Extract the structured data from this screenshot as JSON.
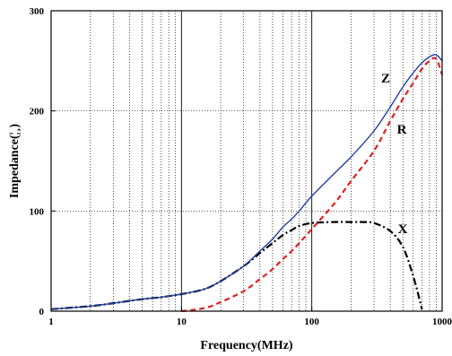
{
  "chart_data": {
    "type": "line",
    "xlabel": "Frequency(MHz)",
    "ylabel": "Impedance(¦¸)",
    "xscale": "log",
    "xlim": [
      1,
      1000
    ],
    "ylim": [
      0,
      300
    ],
    "xticks": [
      "1",
      "10",
      "100",
      "1000"
    ],
    "yticks": [
      "0",
      "100",
      "200",
      "300"
    ],
    "grid": true,
    "series": [
      {
        "name": "Z",
        "color": "#1f3fa0",
        "style": "solid",
        "x": [
          1,
          2,
          3,
          5,
          7,
          10,
          15,
          20,
          30,
          40,
          50,
          60,
          70,
          80,
          100,
          150,
          200,
          300,
          400,
          500,
          600,
          700,
          800,
          900,
          1000
        ],
        "y": [
          2,
          5,
          8,
          12,
          14,
          17,
          22,
          30,
          45,
          60,
          72,
          84,
          92,
          100,
          115,
          138,
          154,
          180,
          204,
          224,
          238,
          248,
          254,
          256,
          250
        ]
      },
      {
        "name": "R",
        "color": "#e02020",
        "style": "dashed",
        "x": [
          10,
          15,
          20,
          30,
          40,
          50,
          60,
          70,
          80,
          100,
          150,
          200,
          300,
          400,
          500,
          600,
          700,
          800,
          900,
          1000
        ],
        "y": [
          0,
          3,
          9,
          20,
          32,
          42,
          52,
          60,
          68,
          82,
          108,
          130,
          160,
          190,
          212,
          228,
          242,
          250,
          252,
          236
        ]
      },
      {
        "name": "X",
        "color": "#000000",
        "style": "dashdot",
        "x": [
          1,
          2,
          3,
          5,
          7,
          10,
          15,
          20,
          30,
          40,
          50,
          60,
          70,
          80,
          100,
          150,
          200,
          250,
          300,
          400,
          500,
          600,
          700
        ],
        "y": [
          2,
          5,
          8,
          12,
          14,
          17,
          22,
          30,
          45,
          58,
          68,
          76,
          81,
          85,
          88,
          89,
          89,
          89,
          88,
          80,
          64,
          35,
          2
        ]
      }
    ]
  }
}
